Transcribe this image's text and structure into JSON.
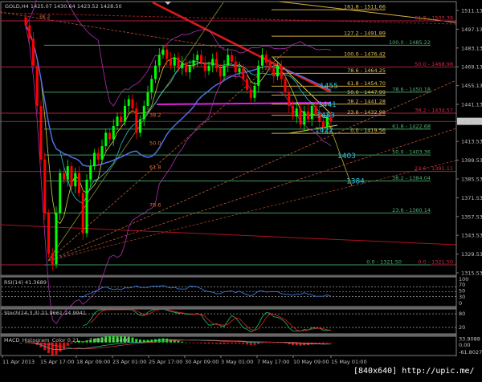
{
  "header": {
    "symbol": "GOLD,H4",
    "ohlc": "1425.07 1430.64 1423.52 1428.50"
  },
  "colors": {
    "background": "#000000",
    "bull_candle": "#00ff00",
    "bear_candle": "#ff0000",
    "grid_border": "#808080",
    "fib_yellow": "#d2aa3c",
    "fib_green": "#3f9a5f",
    "fib_red": "#b01c3c",
    "annotation_cyan": "#2ec4e6",
    "rsi_line": "#3a78d8"
  },
  "chart_data": {
    "type": "candlestick",
    "symbol": "GOLD",
    "timeframe": "H4",
    "close": [
      1500,
      1490,
      1470,
      1440,
      1400,
      1360,
      1330,
      1322,
      1360,
      1390,
      1385,
      1395,
      1380,
      1390,
      1375,
      1345,
      1385,
      1395,
      1405,
      1400,
      1410,
      1420,
      1415,
      1425,
      1432,
      1428,
      1440,
      1445,
      1438,
      1420,
      1430,
      1440,
      1450,
      1460,
      1470,
      1478,
      1482,
      1475,
      1470,
      1476,
      1468,
      1472,
      1465,
      1470,
      1474,
      1478,
      1472,
      1466,
      1470,
      1475,
      1468,
      1462,
      1470,
      1478,
      1473,
      1465,
      1468,
      1460,
      1452,
      1446,
      1455,
      1470,
      1478,
      1472,
      1468,
      1462,
      1470,
      1460,
      1450,
      1440,
      1432,
      1438,
      1426,
      1436,
      1430,
      1440,
      1434,
      1428,
      1424,
      1431,
      1428.5
    ],
    "ylim": [
      1315.53,
      1511.13
    ],
    "price_ticks": [
      "1511.13",
      "1497.13",
      "1483.13",
      "1469.13",
      "1455.13",
      "1441.13",
      "1413.53",
      "1399.53",
      "1385.53",
      "1371.53",
      "1357.53",
      "1343.53",
      "1329.53",
      "1315.53"
    ],
    "current_price": "1428.50",
    "date_ticks": [
      "11 Apr 2013",
      "15 Apr 17:00",
      "18 Apr 09:00",
      "23 Apr 01:00",
      "25 Apr 17:00",
      "30 Apr 09:00",
      "3 May 01:00",
      "7 May 17:00",
      "10 May 09:00",
      "15 May 01:00"
    ],
    "fib_yellow": [
      {
        "price": 1511.66,
        "label": "161.8 - 1511.66"
      },
      {
        "price": 1491.89,
        "label": "127.2 - 1491.89"
      },
      {
        "price": 1476.42,
        "label": "100.0 - 1476.42"
      },
      {
        "price": 1464.25,
        "label": "78.6 - 1464.25"
      },
      {
        "price": 1454.7,
        "label": "61.8 - 1454.70"
      },
      {
        "price": 1447.99,
        "label": "50.0 - 1447.99"
      },
      {
        "price": 1441.28,
        "label": "38.2 - 1441.28"
      },
      {
        "price": 1432.98,
        "label": "23.6 - 1432.98"
      },
      {
        "price": 1419.56,
        "label": "0.0 - 1419.56"
      }
    ],
    "fib_green": [
      {
        "price": 1485.22,
        "label": "100.0 - 1485.22"
      },
      {
        "price": 1450.18,
        "label": "78.6 - 1450.18"
      },
      {
        "price": 1422.68,
        "label": "61.8 - 1422.68"
      },
      {
        "price": 1403.36,
        "label": "50.0 - 1403.36"
      },
      {
        "price": 1384.04,
        "label": "38.2 - 1384.04"
      },
      {
        "price": 1360.14,
        "label": "23.6 - 1360.14"
      },
      {
        "price": 1321.5,
        "label": "0.0 - 1321.50"
      }
    ],
    "fib_red": [
      {
        "price": 1503.39,
        "label": "61.8 - 1503.39"
      },
      {
        "price": 1468.98,
        "label": "50.0 - 1468.98"
      },
      {
        "price": 1434.57,
        "label": "38.2 - 1434.57"
      },
      {
        "price": 1391.11,
        "label": "23.6 - 1391.11"
      },
      {
        "price": 1321.5,
        "label": "0.0 - 1321.50"
      }
    ],
    "fib_left_labels": [
      {
        "price": 1505,
        "label": "38.2"
      },
      {
        "price": 1432,
        "label": "38.2"
      },
      {
        "price": 1411,
        "label": "50.0"
      },
      {
        "price": 1393,
        "label": "61.8"
      },
      {
        "price": 1365,
        "label": "78.6"
      }
    ],
    "target_labels": [
      {
        "price": 1455,
        "label": "1455"
      },
      {
        "price": 1441,
        "label": "1441"
      },
      {
        "price": 1433,
        "label": "1433"
      },
      {
        "price": 1422,
        "label": "1422"
      },
      {
        "price": 1403,
        "label": "1403"
      },
      {
        "price": 1384,
        "label": "1384"
      }
    ],
    "indicators": {
      "rsi": {
        "label": "RSI(14) 41.3689",
        "ticks": [
          "100",
          "70",
          "50",
          "30",
          "0"
        ],
        "levels": [
          70,
          50,
          30
        ]
      },
      "stoch": {
        "label": "Stoch(14,3,3) 21.9661 24.9941",
        "ticks": [
          "80",
          "20"
        ],
        "levels": [
          80,
          20
        ]
      },
      "macd": {
        "label": "MACD_Histogram_Color 0.21 ... -7.8520 -7.8406",
        "ticks": [
          "33.9088",
          "0.00",
          "-61.8027"
        ],
        "max": 33.9088,
        "min": -61.8027
      }
    }
  },
  "watermark": "[840x640] http://upic.me/"
}
